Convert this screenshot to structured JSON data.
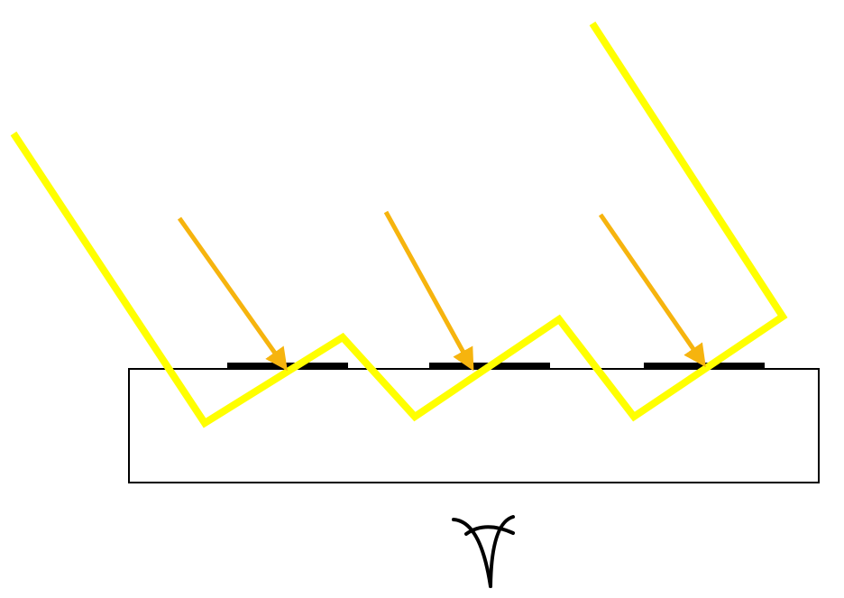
{
  "diagram": {
    "colors": {
      "background": "#ffffff",
      "light_path": "#ffff00",
      "arrow": "#f6b40e",
      "substrate_border": "#000000",
      "pad": "#000000",
      "eye": "#000000"
    },
    "elements": {
      "substrate": "substrate-rectangle",
      "pads": [
        "electrode-pad",
        "electrode-pad",
        "electrode-pad"
      ],
      "arrows": [
        "incident-arrow",
        "incident-arrow",
        "incident-arrow"
      ],
      "light_path": "zigzag-light-path",
      "viewer": "eye-icon"
    }
  }
}
